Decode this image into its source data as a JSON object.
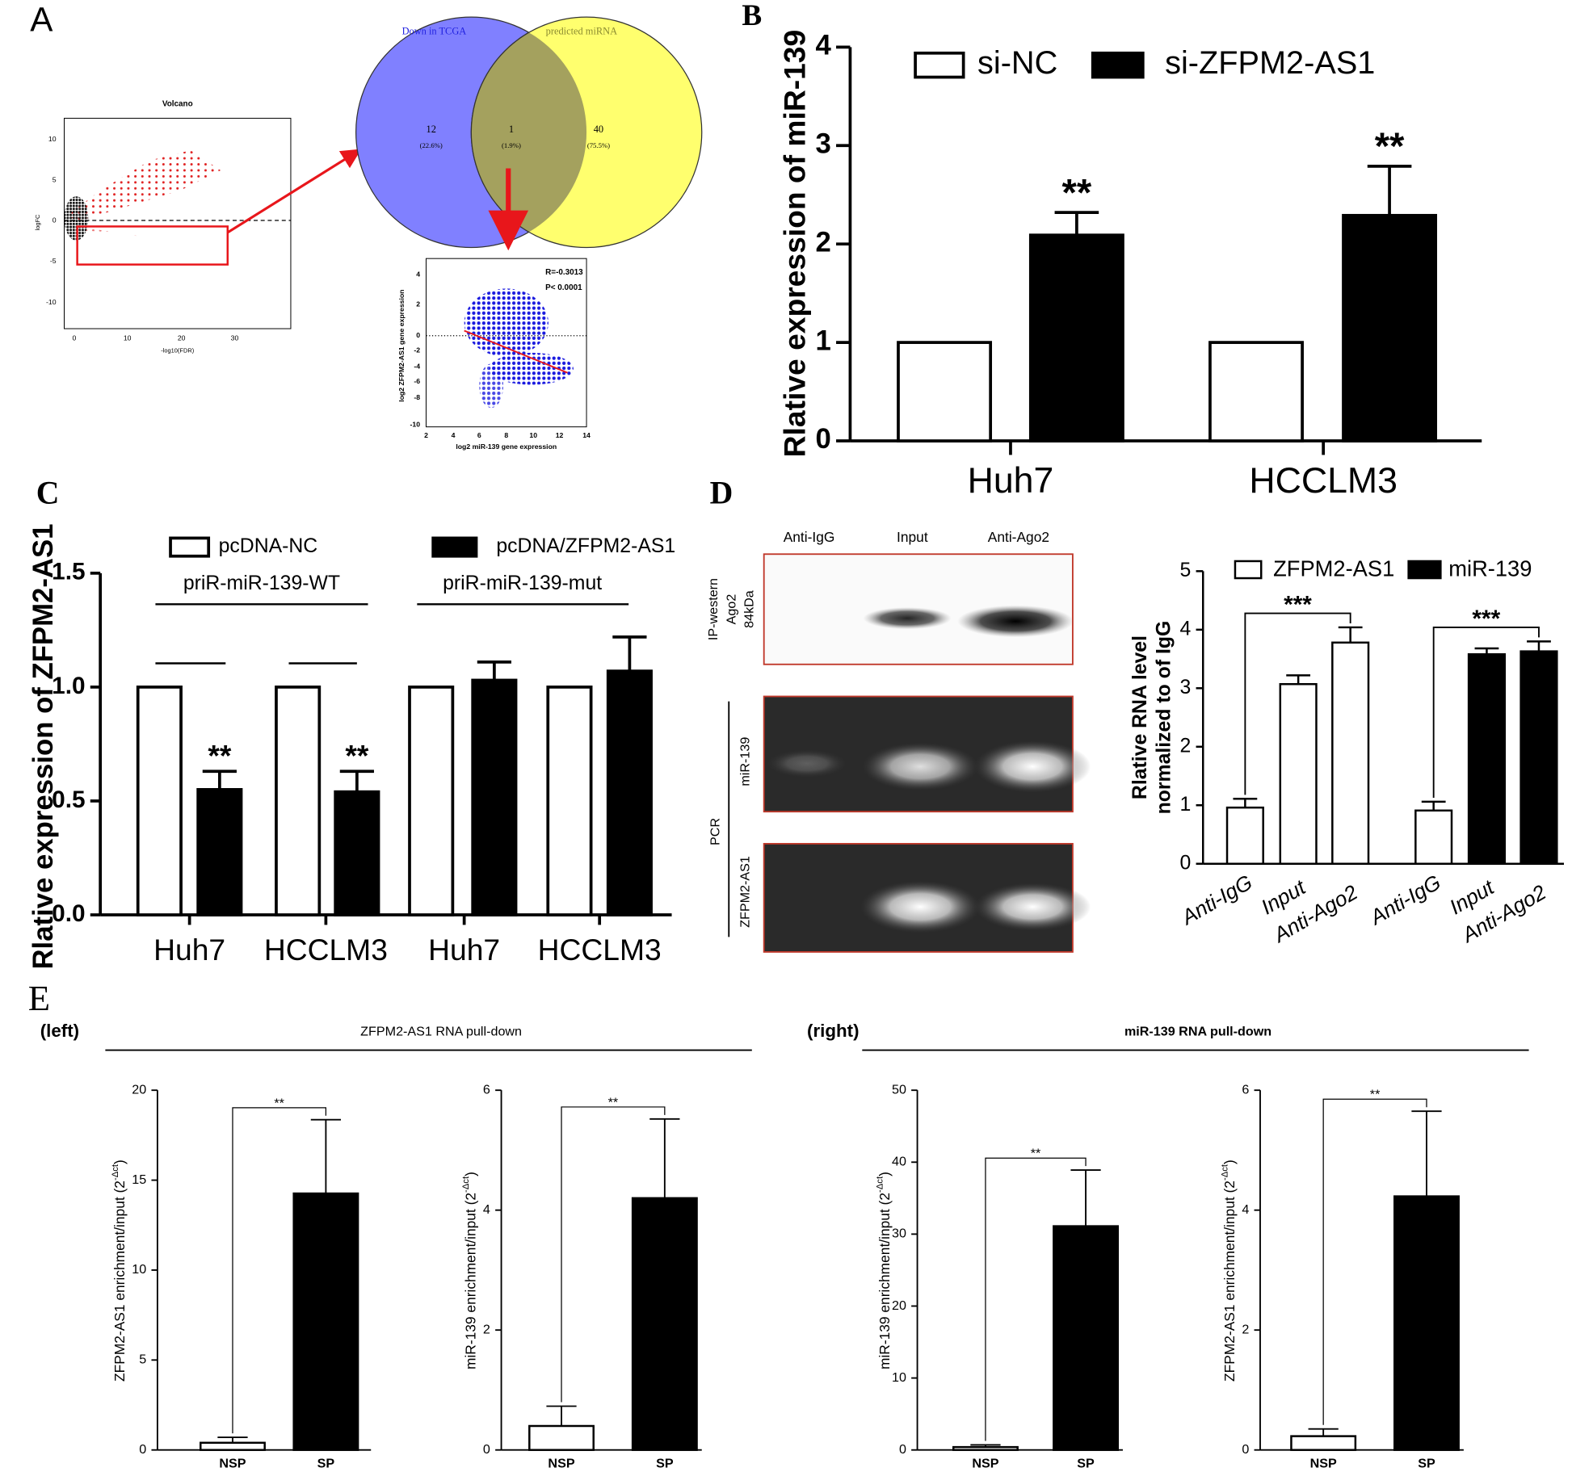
{
  "panel_labels": [
    "A",
    "B",
    "C",
    "D",
    "E"
  ],
  "panel_a": {
    "volcano": {
      "title": "Volcano",
      "ylabel": "logFC",
      "xlabel": "-log10(FDR)",
      "yticks": [
        "10",
        "5",
        "0",
        "-5",
        "-10"
      ],
      "xticks": [
        "0",
        "10",
        "20",
        "30"
      ]
    },
    "venn": {
      "left_title": "Down in TCGA",
      "right_title": "predicted miRNA",
      "left_count": "12",
      "left_pct": "(22.6%)",
      "overlap_count": "1",
      "overlap_pct": "(1.9%)",
      "right_count": "40",
      "right_pct": "(75.5%)"
    },
    "correlation": {
      "r": "R=-0.3013",
      "p": "P< 0.0001",
      "ylabel": "log2 ZFPM2-AS1 gene expression",
      "xlabel": "log2 miR-139 gene expression",
      "yticks": [
        "4",
        "2",
        "0",
        "-2",
        "-4",
        "-6",
        "-8",
        "-10"
      ],
      "xticks": [
        "2",
        "4",
        "6",
        "8",
        "10",
        "12",
        "14"
      ]
    }
  },
  "panel_d": {
    "lanes": [
      "Anti-IgG",
      "Input",
      "Anti-Ago2"
    ],
    "western_label": [
      "IP-western",
      "Ago2",
      "84kDa"
    ],
    "pcr_label": "PCR",
    "pcr_rows": [
      "miR-139",
      "ZFPM2-AS1"
    ]
  },
  "panel_e": {
    "left_tag": "(left)",
    "left_title": "ZFPM2-AS1 RNA pull-down",
    "right_tag": "(right)",
    "right_title": "miR-139 RNA pull-down"
  },
  "chart_data": [
    {
      "type": "bar",
      "ylabel": "Rlative expression of miR-139",
      "categories": [
        "Huh7",
        "HCCLM3"
      ],
      "ylim": [
        0,
        4
      ],
      "yticks": [
        0,
        1,
        2,
        3,
        4
      ],
      "series": [
        {
          "name": "si-NC",
          "color": "#ffffff",
          "values": [
            1,
            1
          ]
        },
        {
          "name": "si-ZFPM2-AS1",
          "color": "#000000",
          "values": [
            2.09,
            2.29
          ],
          "errors": [
            0.23,
            0.5
          ],
          "annotations": [
            "**",
            "**"
          ]
        }
      ]
    },
    {
      "type": "bar",
      "ylabel": "Rlative expression of ZFPM2-AS1",
      "group_labels": [
        "priR-miR-139-WT",
        "priR-miR-139-mut"
      ],
      "categories": [
        "Huh7",
        "HCCLM3",
        "Huh7",
        "HCCLM3"
      ],
      "ylim": [
        0,
        1.5
      ],
      "yticks": [
        {
          "value": 0,
          "label": "0.0"
        },
        {
          "value": 0.5,
          "label": "0.5"
        },
        {
          "value": 1,
          "label": "1.0"
        },
        {
          "value": 1.5,
          "label": "1.5"
        }
      ],
      "series": [
        {
          "name": "pcDNA-NC",
          "color": "#ffffff",
          "values": [
            1,
            1,
            1,
            1
          ]
        },
        {
          "name": "pcDNA/ZFPM2-AS1",
          "color": "#000000",
          "values": [
            0.55,
            0.54,
            1.03,
            1.07
          ],
          "errors": [
            0.08,
            0.09,
            0.08,
            0.15
          ],
          "annotations": [
            "**",
            "**",
            null,
            null
          ]
        }
      ]
    },
    {
      "type": "bar",
      "ylabel": [
        "Rlative RNA level",
        "normalized to of IgG"
      ],
      "categories": [
        "Anti-IgG",
        "Input",
        "Anti-Ago2"
      ],
      "ylim": [
        0,
        5
      ],
      "yticks": [
        0,
        1,
        2,
        3,
        4,
        5
      ],
      "series": [
        {
          "name": "ZFPM2-AS1",
          "color": "#ffffff",
          "values": [
            0.96,
            3.07,
            3.78
          ],
          "errors": [
            0.15,
            0.15,
            0.26
          ],
          "comparison": "***"
        },
        {
          "name": "miR-139",
          "color": "#000000",
          "colors": [
            "#ffffff",
            "#000000",
            "#000000"
          ],
          "values": [
            0.91,
            3.58,
            3.63
          ],
          "errors": [
            0.15,
            0.1,
            0.17
          ],
          "comparison": "***"
        }
      ]
    },
    {
      "type": "bar",
      "ylabel": "ZFPM2-AS1 enrichment/input (2",
      "ylabel_superscript": "-Δct",
      "ylabel_suffix": ")",
      "categories": [
        "NSP",
        "SP"
      ],
      "ylim": [
        0,
        20
      ],
      "yticks": [
        0,
        5,
        10,
        15,
        20
      ],
      "values": [
        0.4,
        14.26
      ],
      "errors": [
        0.3,
        4.1
      ],
      "colors": [
        "#ffffff",
        "#000000"
      ],
      "comparison": "**"
    },
    {
      "type": "bar",
      "ylabel": "miR-139 enrichment/input (2",
      "ylabel_superscript": "-Δct",
      "ylabel_suffix": ")",
      "categories": [
        "NSP",
        "SP"
      ],
      "ylim": [
        0,
        6
      ],
      "yticks": [
        0,
        2,
        4,
        6
      ],
      "values": [
        0.4,
        4.2
      ],
      "errors": [
        0.33,
        1.32
      ],
      "colors": [
        "#ffffff",
        "#000000"
      ],
      "comparison": "**"
    },
    {
      "type": "bar",
      "ylabel": "miR-139 enrichment/input (2",
      "ylabel_superscript": "-Δct",
      "ylabel_suffix": ")",
      "categories": [
        "NSP",
        "SP"
      ],
      "ylim": [
        0,
        50
      ],
      "yticks": [
        0,
        10,
        20,
        30,
        40,
        50
      ],
      "values": [
        0.4,
        31.1
      ],
      "errors": [
        0.3,
        7.8
      ],
      "colors": [
        "#ffffff",
        "#000000"
      ],
      "comparison": "**"
    },
    {
      "type": "bar",
      "ylabel": "ZFPM2-AS1 enrichment/input (2",
      "ylabel_superscript": "-Δct",
      "ylabel_suffix": ")",
      "categories": [
        "NSP",
        "SP"
      ],
      "ylim": [
        0,
        6
      ],
      "yticks": [
        0,
        2,
        4,
        6
      ],
      "values": [
        0.23,
        4.23
      ],
      "errors": [
        0.12,
        1.42
      ],
      "colors": [
        "#ffffff",
        "#000000"
      ],
      "comparison": "**"
    }
  ]
}
